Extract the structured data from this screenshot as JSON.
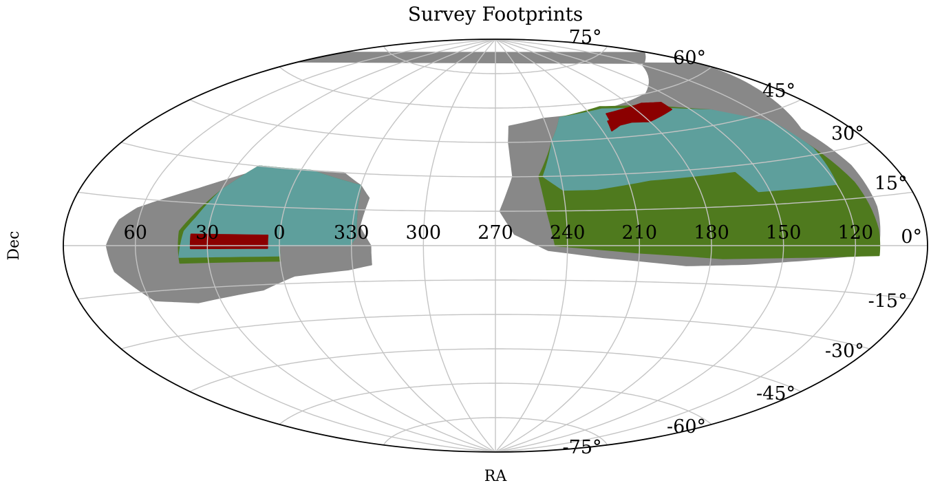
{
  "chart_data": {
    "type": "map",
    "projection": "aitoff",
    "title": "Survey Footprints",
    "xlabel": "RA",
    "ylabel": "Dec",
    "ra_tick_labels": [
      "60",
      "30",
      "0",
      "330",
      "300",
      "270",
      "240",
      "210",
      "180",
      "150",
      "120"
    ],
    "ra_tick_values": [
      60,
      30,
      0,
      330,
      300,
      270,
      240,
      210,
      180,
      150,
      120
    ],
    "dec_tick_labels": [
      "75°",
      "60°",
      "45°",
      "30°",
      "15°",
      "0°",
      "-15°",
      "-30°",
      "-45°",
      "-60°",
      "-75°"
    ],
    "dec_tick_values": [
      75,
      60,
      45,
      30,
      15,
      0,
      -15,
      -30,
      -45,
      -60,
      -75
    ],
    "grid": true,
    "colors": {
      "gray_region": "#888888",
      "green_region": "#4f7a1e",
      "teal_region": "#5e9f9c",
      "red_region": "#8b0000",
      "grid": "#c4c4c4",
      "frame": "#000000"
    },
    "regions": [
      {
        "color": "gray",
        "patches": [
          [
            [
              40,
              -20
            ],
            [
              58,
              -18
            ],
            [
              70,
              -8
            ],
            [
              72,
              0
            ],
            [
              68,
              8
            ],
            [
              62,
              12
            ],
            [
              40,
              20
            ],
            [
              20,
              28
            ],
            [
              0,
              30
            ],
            [
              -20,
              30
            ],
            [
              -30,
              25
            ],
            [
              -35,
              20
            ],
            [
              -33,
              8
            ],
            [
              -38,
              0
            ],
            [
              -38,
              -8
            ],
            [
              -28,
              -10
            ],
            [
              -5,
              -12
            ],
            [
              10,
              -17
            ]
          ],
          [
            [
              88,
              70
            ],
            [
              120,
              68
            ],
            [
              160,
              60
            ],
            [
              205,
              56
            ],
            [
              240,
              55
            ],
            [
              262,
              52
            ],
            [
              263,
              45
            ],
            [
              262,
              30
            ],
            [
              268,
              15
            ],
            [
              262,
              5
            ],
            [
              248,
              -2
            ],
            [
              225,
              -5
            ],
            [
              190,
              -8
            ],
            [
              165,
              -7
            ],
            [
              140,
              -5
            ],
            [
              118,
              -3
            ],
            [
              110,
              2
            ],
            [
              108,
              12
            ],
            [
              108,
              25
            ],
            [
              112,
              38
            ],
            [
              105,
              45
            ],
            [
              95,
              55
            ],
            [
              90,
              62
            ]
          ]
        ]
      },
      {
        "color": "green",
        "patches": [
          [
            [
              42,
              -6
            ],
            [
              0,
              -6
            ],
            [
              0,
              0
            ],
            [
              -30,
              0
            ],
            [
              -30,
              1
            ],
            [
              -32,
              4
            ],
            [
              -30,
              25
            ],
            [
              -5,
              30
            ],
            [
              20,
              30
            ],
            [
              30,
              20
            ],
            [
              38,
              10
            ],
            [
              42,
              5
            ]
          ],
          [
            [
              110,
              -3
            ],
            [
              140,
              -4
            ],
            [
              175,
              -5
            ],
            [
              210,
              -3
            ],
            [
              245,
              0
            ],
            [
              248,
              15
            ],
            [
              250,
              30
            ],
            [
              240,
              45
            ],
            [
              230,
              55
            ],
            [
              200,
              58
            ],
            [
              170,
              56
            ],
            [
              140,
              50
            ],
            [
              120,
              40
            ],
            [
              112,
              20
            ],
            [
              110,
              5
            ]
          ]
        ]
      },
      {
        "color": "teal",
        "patches": [
          [
            [
              42,
              -4
            ],
            [
              0,
              -4
            ],
            [
              0,
              0
            ],
            [
              -30,
              0
            ],
            [
              -30,
              1
            ],
            [
              -32,
              4
            ],
            [
              -30,
              25
            ],
            [
              -5,
              30
            ],
            [
              20,
              30
            ],
            [
              30,
              20
            ],
            [
              36,
              10
            ],
            [
              40,
              5
            ]
          ],
          [
            [
              120,
              20
            ],
            [
              155,
              20
            ],
            [
              160,
              28
            ],
            [
              200,
              27
            ],
            [
              225,
              24
            ],
            [
              240,
              24
            ],
            [
              248,
              30
            ],
            [
              240,
              45
            ],
            [
              230,
              55
            ],
            [
              200,
              57
            ],
            [
              170,
              55
            ],
            [
              140,
              50
            ],
            [
              120,
              42
            ],
            [
              117,
              32
            ]
          ]
        ]
      },
      {
        "color": "red",
        "patches": [
          [
            [
              37,
              -1
            ],
            [
              5,
              -1
            ],
            [
              5,
              4
            ],
            [
              37,
              4
            ]
          ],
          [
            [
              160,
              53
            ],
            [
              180,
              50
            ],
            [
              195,
              51
            ],
            [
              202,
              51
            ],
            [
              200,
              55
            ],
            [
              172,
              57
            ],
            [
              160,
              56
            ]
          ],
          [
            [
              186,
              51
            ],
            [
              198,
              50
            ],
            [
              205,
              48
            ],
            [
              203,
              52
            ],
            [
              192,
              53
            ]
          ]
        ]
      }
    ]
  }
}
